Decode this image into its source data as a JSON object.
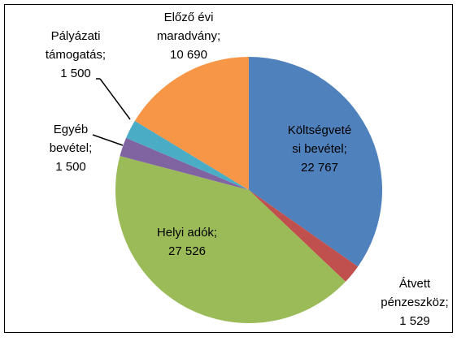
{
  "chart_data": {
    "type": "pie",
    "categories": [
      [
        "Költségveté",
        "si bevétel;"
      ],
      [
        "Átvett",
        "pénzeszköz;"
      ],
      [
        "Helyi adók;"
      ],
      [
        "Egyéb",
        "bevétel;"
      ],
      [
        "Pályázati",
        "támogatás;"
      ],
      [
        "Előző évi",
        "maradvány;"
      ]
    ],
    "values": [
      22767,
      1529,
      27526,
      1500,
      1500,
      10690
    ],
    "value_labels": [
      "22 767",
      "1 529",
      "27 526",
      "1 500",
      "1 500",
      "10 690"
    ],
    "colors": [
      "#4f81bd",
      "#c0504d",
      "#9bbb59",
      "#8064a2",
      "#4bacc6",
      "#f79646"
    ]
  }
}
